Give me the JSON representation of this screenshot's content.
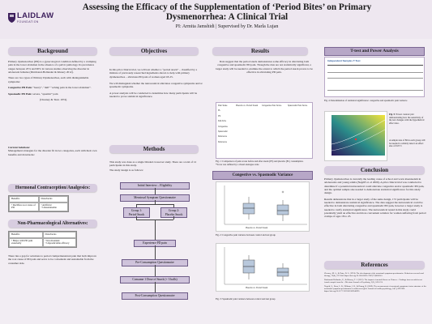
{
  "header": {
    "logo_text": "LAIDLAW",
    "logo_sub": "FOUNDATION",
    "title": "Assessing the Efficacy of the Supplementation of ‘Period Bites’ on Primary Dysmenorrhea: A Clinical Trial",
    "pi": "PI: Armita Jamshidi | Supervised by Dr. Marla Lujan"
  },
  "background": {
    "heading": "Background",
    "p1": "Primary dysmenorrhea (PD) is a gynecological condition defined by a cramping pain in the lower abdomen in the absence of a pelvic pathology. Its prevalence ranges between 25% and 90% in various studies observing the disorder in adolescent females (Dirnbrand-Hollander & Khoury 2012).",
    "p2": "There are two types of Primary Dysmenorrhea, each with distinguishable symptoms:",
    "p3_label": "Congestive PD Pain:",
    "p3": " “heavy”, “dull” “aching pain in the lower abdomen”.",
    "p4_label": "Spasmodic PD Pain:",
    "p4": " severe, “spasmic” pain",
    "cite": "(Chesney & Tasto 1974).",
    "p5_label": "Current Solutions:",
    "p5": "Management strategies for the disorder fit in two categories, each with their own benefits and drawbacks:"
  },
  "hormonal": {
    "heading": "Hormonal Contraception/Analgesics:",
    "benefits": "Benefits",
    "benefit1": "• Rectifies root cause of PD",
    "drawbacks": "Drawbacks",
    "drawback1": "• Artificial",
    "drawback2": "• Unsustainable"
  },
  "nonpharm": {
    "heading": "Non-Pharmacological Alternatives:",
    "benefits": "Benefits",
    "benefit1": "• Helps with PD pain externally",
    "drawbacks": "Drawbacks",
    "drawback1": "• Inconvenient",
    "drawback2": "• Unpredictable efficacy",
    "text": "There lies a gap for solutions to period cramps/menstrual pain that both improve the root cause of PD pain and serve to be convenient and sustainable from the consumer side."
  },
  "objectives": {
    "heading": "Objectives",
    "p1": "In this pilot clinical trial, we will test whether a “period snack” – classified by a mixture of previously researched ingredients shown to help with primary dysmenorrhea – alleviates PD pain of women aged 18-25.",
    "p2": "We will distinguish whether the nutraceutical alleviates congestive symptoms and/or spasmodic symptoms.",
    "p3": "A power analysis will be conducted to determine how many participants will be needed to prove statistical significance."
  },
  "methods": {
    "heading": "Methods",
    "p1": "This study was done as a single blinded crossover study. There are a total of 12 participants in this study.",
    "p2": "The study design is as follows:",
    "flow": [
      "Initial Interview – Eligibility",
      "Menstrual Symptom Questionnaire",
      "Group 1:\nPeriod Snack",
      "Group 2:\nPlacebo Snack",
      "Experience PD pain",
      "Pre-Consumption Questionnaire",
      "Consume 1 Dose of Snack (+ 3 balls)",
      "Post-Consumption Questionnaire"
    ]
  },
  "results": {
    "heading": "Results",
    "p1": "Data suggest that the period snack demonstrates some efficacy in alleviating both congestive and spasmodic PD pain. Though the data are not statistically significant, a larger study will be needed to examine the extent to which the period snack proves to be effective in alleviating PD pain.",
    "fig1": "Fig. 1: Comparison of pain scores before and after snack (PS) and placebo (PL) consumption.",
    "fig1b": "*Score was defined by a visual analogue scale",
    "table_cols": [
      "Pain Scale",
      "Placebo vs. Period Snack",
      "Congestive Pain Score",
      "Spasmodic Pain Score"
    ],
    "table_rows": [
      "PL",
      "PS",
      "Dull Ache",
      "Congestive",
      "Spasmodic",
      "Reference",
      "Reference"
    ],
    "chart2_title": "Congestive vs. Spasmodic Variance",
    "fig2": "Fig. 2: Congestive pain variance between control and test group",
    "fig3": "Fig. 3: Spasmodic pain variance between control and test group",
    "xlabel": "Placebo vs. Period Snack"
  },
  "ttest": {
    "heading": "T-test and Power Analysis",
    "sub": "Independent Samples T-Test",
    "fig4": "Fig. 4: Determination of statistical significance: congestive and spasmodic pain variance",
    "fig5_label": "Fig. 5:",
    "fig5": " Power contour plot demonstrating how the sensitivity of the test changes with the hypothetical effect size.",
    "fig5b": "A sample size of 86 in each group will be needed to reliably detect an effect size of 0.05 5"
  },
  "conclusion": {
    "heading": "Conclusion",
    "p1": "Primary dysmenorrhea is currently the leading cause of school and work absenteeism in adolescents and young adults (Negriff et. al 2009). A pilot clinical trial was conducted to determine if a potential nutraceutical could alleviate congestive and/or spasmodic PD pain, and the optimal sample size needed to demonstrate statistical significance for this study design.",
    "p2": "Results demonstrate that in a larger study of the same design, 172 participants will be needed to demonstrate statistical significance. The data suggest the nutraceutical could be effective in both alleviating congestive and spasmodic PD pain, however a larger study is needed to verify statistical significance. The nutraceutical tested in this study could potentially yield an effective and more convenient solution for women suffering from period cramps of ages 18 to 25."
  },
  "references": {
    "heading": "References",
    "items": [
      "Chesney, M. A., & Tasto, D. L. (1974). The development of the menstrual symptom questionnaire. Behaviour research and therapy, 13(4), 237-244. https://doi.org/10.1016/0005-7967(75)90028-5",
      "Dirnbrand-Hollander, E., & Khoury, T. J. (2012). The impact of mental illness on Chinese... Findings from an adolescent female sample from the ...Mexican Journal of Psychiatry, 2(3), 169-174.",
      "Negriff, S., Dorn, L. D., Hillman, J. B., & Huang, B. (2009). The measurement of menstrual symptoms: factor structure of the menstrual symptom questionnaire in adolescent girls. Journal of health psychology, 14(7), 899-908. https://doi.org/10.1177/1359105309340995"
    ]
  },
  "colors": {
    "background": "#f2edf3",
    "section_head": "#d8cde0",
    "flow_box": "#cfc3db",
    "accent": "#3d1f5c"
  }
}
